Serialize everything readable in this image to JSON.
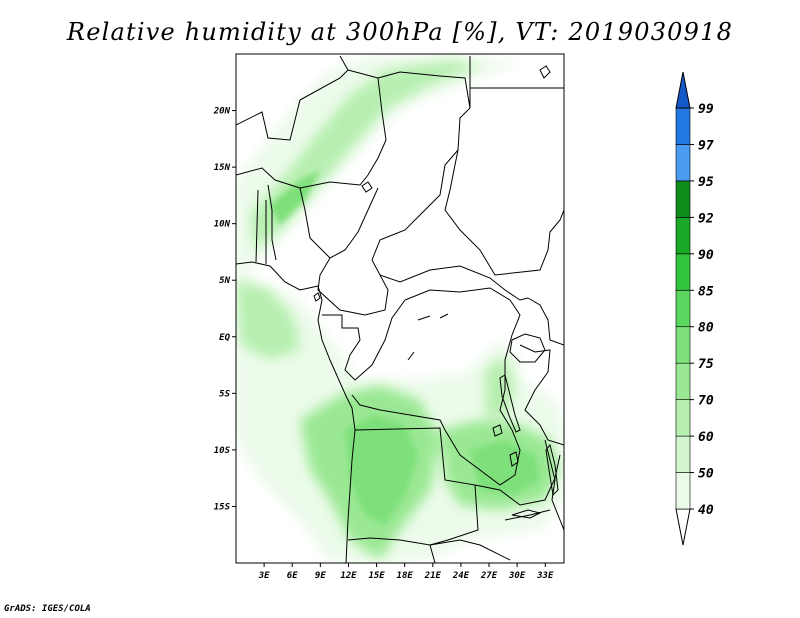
{
  "title": "Relative humidity at 300hPa [%], VT: 2019030918",
  "credit": "GrADS: IGES/COLA",
  "chart_data": {
    "type": "filled-contour-map",
    "variable": "Relative humidity",
    "level": "300hPa",
    "units": "%",
    "valid_time": "2019030918",
    "lon_range": [
      0,
      35
    ],
    "lat_range": [
      -20,
      25
    ],
    "lon_ticks": [
      {
        "value": 3,
        "label": "3E"
      },
      {
        "value": 6,
        "label": "6E"
      },
      {
        "value": 9,
        "label": "9E"
      },
      {
        "value": 12,
        "label": "12E"
      },
      {
        "value": 15,
        "label": "15E"
      },
      {
        "value": 18,
        "label": "18E"
      },
      {
        "value": 21,
        "label": "21E"
      },
      {
        "value": 24,
        "label": "24E"
      },
      {
        "value": 27,
        "label": "27E"
      },
      {
        "value": 30,
        "label": "30E"
      },
      {
        "value": 33,
        "label": "33E"
      }
    ],
    "lat_ticks": [
      {
        "value": 20,
        "label": "20N"
      },
      {
        "value": 15,
        "label": "15N"
      },
      {
        "value": 10,
        "label": "10N"
      },
      {
        "value": 5,
        "label": "5N"
      },
      {
        "value": 0,
        "label": "EQ"
      },
      {
        "value": -5,
        "label": "5S"
      },
      {
        "value": -10,
        "label": "10S"
      },
      {
        "value": -15,
        "label": "15S"
      }
    ],
    "colorbar": {
      "levels": [
        40,
        50,
        60,
        70,
        75,
        80,
        85,
        90,
        92,
        95,
        97,
        99
      ],
      "colors": [
        "#ffffff",
        "#ebfbe9",
        "#d4f6cf",
        "#b7efb0",
        "#9ae893",
        "#7ee07a",
        "#5bd65f",
        "#33c43e",
        "#1aa827",
        "#0e8c1b",
        "#4a9cf0",
        "#2277e0",
        "#1558c8"
      ]
    }
  }
}
